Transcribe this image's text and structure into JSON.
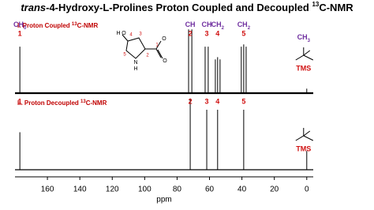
{
  "chart_data": {
    "type": "spectrum",
    "title": {
      "italic": "trans",
      "main": "-4-Hydroxy-L-Prolines Proton Coupled and Decoupled ",
      "sup": "13",
      "end": "C-NMR"
    },
    "xlabel": "ppm",
    "xlim": [
      180,
      -4
    ],
    "xticks": [
      160,
      140,
      120,
      100,
      80,
      60,
      40,
      20,
      0
    ],
    "color": "#000000",
    "panels": [
      {
        "name": {
          "main": "I. Proton Coupled ",
          "sup": "13",
          "end": "C-NMR"
        },
        "x": [
          177,
          72.9,
          70.9,
          62.7,
          60.8,
          56.4,
          55,
          53.5,
          40.4,
          38.9,
          37.4,
          0
        ],
        "values": [
          0.62,
          0.85,
          0.85,
          0.62,
          0.62,
          0.45,
          0.48,
          0.45,
          0.62,
          0.65,
          0.62,
          0.06
        ],
        "annotations": [
          {
            "x": 177,
            "num": "1",
            "group": "CH",
            "sub": "0"
          },
          {
            "x": 71.9,
            "num": "2",
            "group": "CH"
          },
          {
            "x": 61.7,
            "num": "3",
            "group": "CH"
          },
          {
            "x": 55,
            "num": "4",
            "group": "CH",
            "sub": "2"
          },
          {
            "x": 38.9,
            "num": "5",
            "group": "CH",
            "sub": "2"
          }
        ],
        "tms": {
          "group": "CH",
          "sub": "3",
          "label": "TMS"
        }
      },
      {
        "name": {
          "main": "II. Proton Decoupled ",
          "sup": "13",
          "end": "C-NMR"
        },
        "x": [
          177,
          71.9,
          61.7,
          55,
          38.9,
          0
        ],
        "values": [
          0.5,
          0.95,
          0.8,
          0.8,
          0.8,
          0.25
        ],
        "annotations": [
          {
            "x": 177,
            "num": "1"
          },
          {
            "x": 71.9,
            "num": "2"
          },
          {
            "x": 61.7,
            "num": "3"
          },
          {
            "x": 55,
            "num": "4"
          },
          {
            "x": 38.9,
            "num": "5"
          }
        ],
        "tms": {
          "label": "TMS"
        }
      }
    ],
    "molecule": {
      "atoms": [
        "H",
        "O",
        "N",
        "H",
        "O",
        "O"
      ],
      "numbers": [
        "1",
        "2",
        "3",
        "4",
        "5"
      ]
    }
  }
}
